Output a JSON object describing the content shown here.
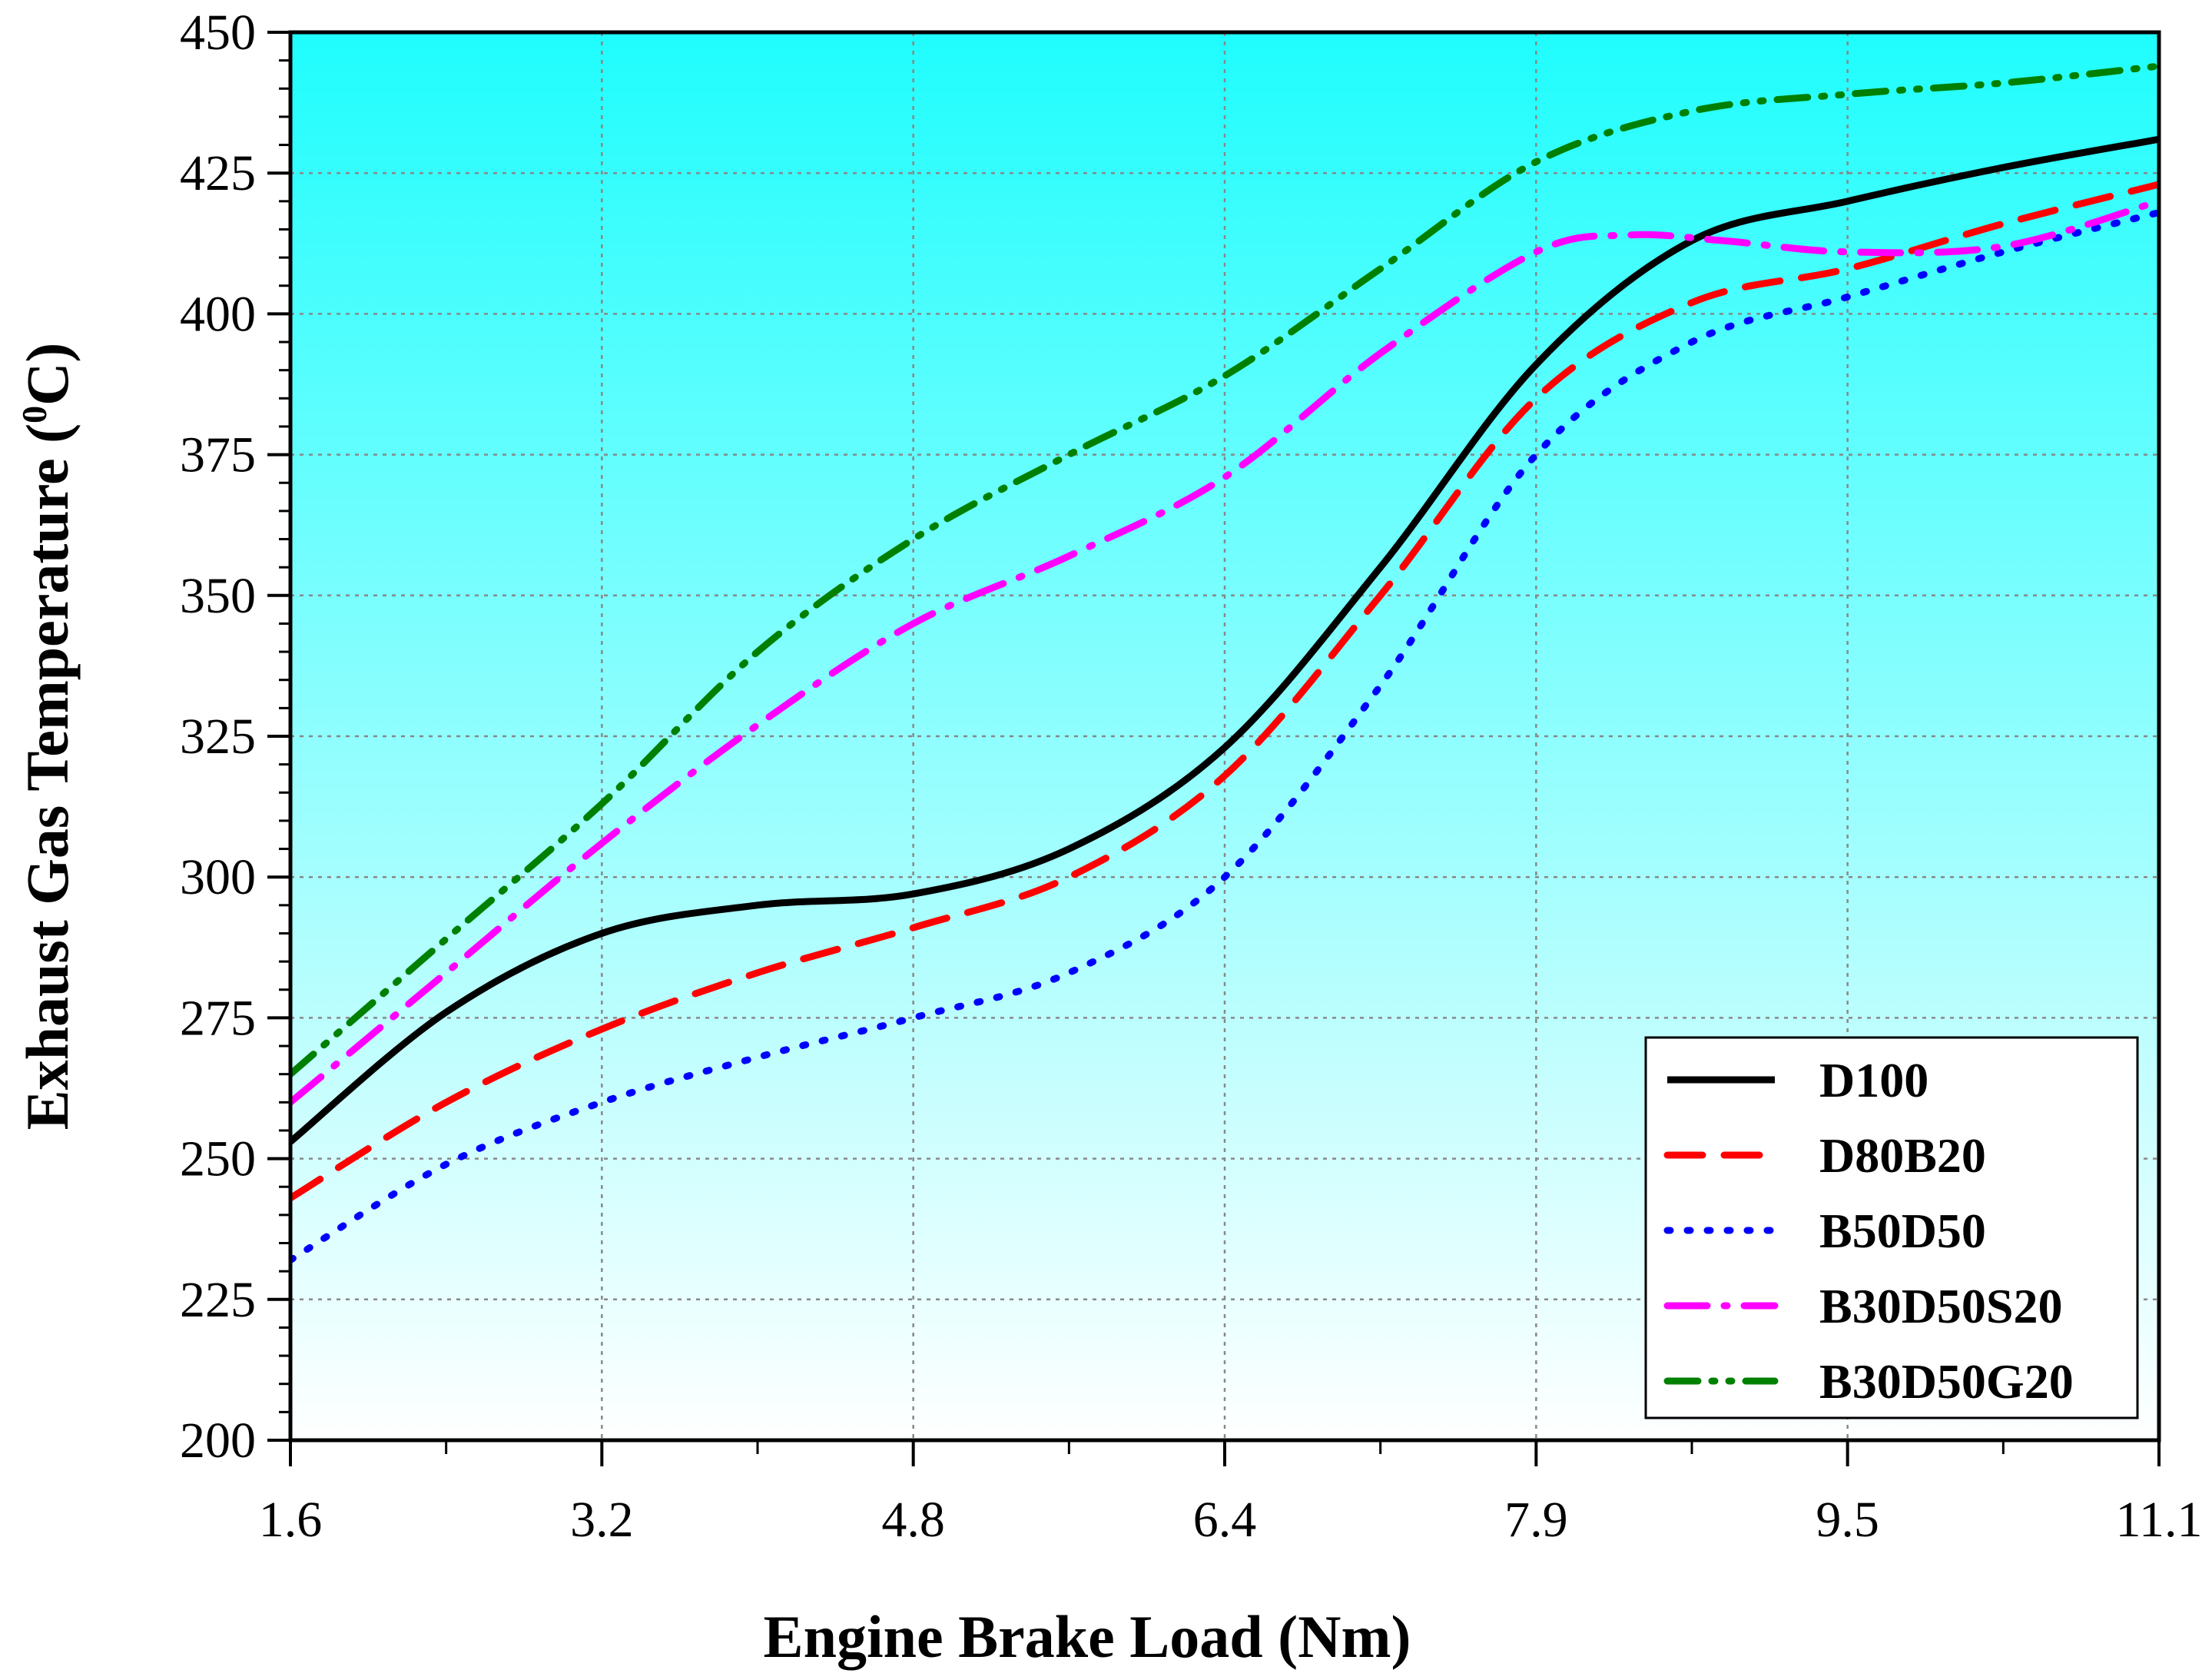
{
  "chart_data": {
    "type": "line",
    "xlabel": "Engine Brake Load (Nm)",
    "ylabel_main": "Exhaust Gas Temperature (",
    "ylabel_sup": "0",
    "ylabel_tail": "C)",
    "x_ticks": [
      "1.6",
      "3.2",
      "4.8",
      "6.4",
      "7.9",
      "9.5",
      "11.1"
    ],
    "y_ticks": [
      "200",
      "225",
      "250",
      "275",
      "300",
      "325",
      "350",
      "375",
      "400",
      "425",
      "450"
    ],
    "ylim": [
      200,
      450
    ],
    "grid": true,
    "legend_position": "bottom-right",
    "background": {
      "top": "#1ffdfd",
      "bottom": "#ffffff"
    },
    "series": [
      {
        "name": "D100",
        "color": "#000000",
        "dash": "solid",
        "values": [
          [
            0,
            253
          ],
          [
            0.5,
            276
          ],
          [
            1,
            290
          ],
          [
            1.5,
            295
          ],
          [
            2,
            297
          ],
          [
            2.5,
            305
          ],
          [
            3,
            323
          ],
          [
            3.5,
            355
          ],
          [
            4,
            391
          ],
          [
            4.5,
            413
          ],
          [
            5,
            420
          ],
          [
            5.5,
            426
          ],
          [
            6,
            431
          ]
        ]
      },
      {
        "name": "D80B20",
        "color": "#ff0000",
        "dash": "dash",
        "values": [
          [
            0,
            243
          ],
          [
            0.5,
            260
          ],
          [
            1,
            273
          ],
          [
            1.5,
            283
          ],
          [
            2,
            291
          ],
          [
            2.5,
            300
          ],
          [
            3,
            318
          ],
          [
            3.5,
            350
          ],
          [
            4,
            385
          ],
          [
            4.5,
            402
          ],
          [
            5,
            408
          ],
          [
            5.5,
            416
          ],
          [
            6,
            423
          ]
        ]
      },
      {
        "name": "B50D50",
        "color": "#0000ff",
        "dash": "dot",
        "values": [
          [
            0,
            232
          ],
          [
            0.5,
            249
          ],
          [
            1,
            260
          ],
          [
            1.5,
            268
          ],
          [
            2,
            275
          ],
          [
            2.5,
            283
          ],
          [
            3,
            300
          ],
          [
            3.5,
            334
          ],
          [
            4,
            375
          ],
          [
            4.5,
            395
          ],
          [
            5,
            403
          ],
          [
            5.5,
            411
          ],
          [
            6,
            418
          ]
        ]
      },
      {
        "name": "B30D50S20",
        "color": "#ff00ff",
        "dash": "dashdot",
        "values": [
          [
            0,
            260
          ],
          [
            0.5,
            283
          ],
          [
            1,
            306
          ],
          [
            1.5,
            327
          ],
          [
            2,
            345
          ],
          [
            2.5,
            357
          ],
          [
            3,
            371
          ],
          [
            3.5,
            393
          ],
          [
            4,
            411
          ],
          [
            4.3,
            414
          ],
          [
            4.6,
            413
          ],
          [
            5,
            411
          ],
          [
            5.5,
            412
          ],
          [
            6,
            420
          ]
        ]
      },
      {
        "name": "B30D50G20",
        "color": "#008000",
        "dash": "dashdotdot",
        "values": [
          [
            0,
            265
          ],
          [
            0.5,
            289
          ],
          [
            1,
            313
          ],
          [
            1.5,
            340
          ],
          [
            2,
            360
          ],
          [
            2.5,
            375
          ],
          [
            3,
            389
          ],
          [
            3.5,
            408
          ],
          [
            4,
            427
          ],
          [
            4.5,
            436
          ],
          [
            5,
            439
          ],
          [
            5.5,
            441
          ],
          [
            6,
            444
          ]
        ]
      }
    ]
  }
}
